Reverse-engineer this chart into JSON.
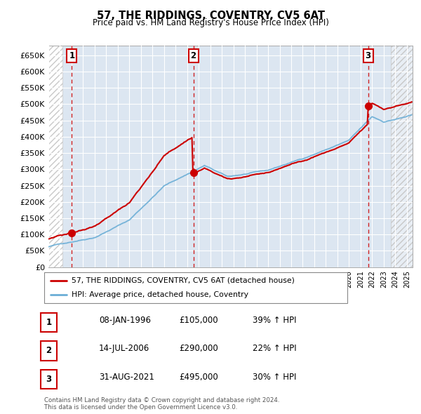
{
  "title": "57, THE RIDDINGS, COVENTRY, CV5 6AT",
  "subtitle": "Price paid vs. HM Land Registry's House Price Index (HPI)",
  "xlim_start": 1994.0,
  "xlim_end": 2025.5,
  "ylim": [
    0,
    680000
  ],
  "yticks": [
    0,
    50000,
    100000,
    150000,
    200000,
    250000,
    300000,
    350000,
    400000,
    450000,
    500000,
    550000,
    600000,
    650000
  ],
  "ytick_labels": [
    "£0",
    "£50K",
    "£100K",
    "£150K",
    "£200K",
    "£250K",
    "£300K",
    "£350K",
    "£400K",
    "£450K",
    "£500K",
    "£550K",
    "£600K",
    "£650K"
  ],
  "hpi_color": "#6baed6",
  "price_color": "#cc0000",
  "vline_color": "#cc0000",
  "sale_points": [
    {
      "year": 1996.03,
      "price": 105000,
      "label": "1"
    },
    {
      "year": 2006.54,
      "price": 290000,
      "label": "2"
    },
    {
      "year": 2021.66,
      "price": 495000,
      "label": "3"
    }
  ],
  "legend_label_price": "57, THE RIDDINGS, COVENTRY, CV5 6AT (detached house)",
  "legend_label_hpi": "HPI: Average price, detached house, Coventry",
  "table_rows": [
    [
      "1",
      "08-JAN-1996",
      "£105,000",
      "39% ↑ HPI"
    ],
    [
      "2",
      "14-JUL-2006",
      "£290,000",
      "22% ↑ HPI"
    ],
    [
      "3",
      "31-AUG-2021",
      "£495,000",
      "30% ↑ HPI"
    ]
  ],
  "footnote": "Contains HM Land Registry data © Crown copyright and database right 2024.\nThis data is licensed under the Open Government Licence v3.0.",
  "plot_bg_color": "#dce6f1",
  "grid_color": "#ffffff",
  "hatch_color": "#c8c8c8"
}
